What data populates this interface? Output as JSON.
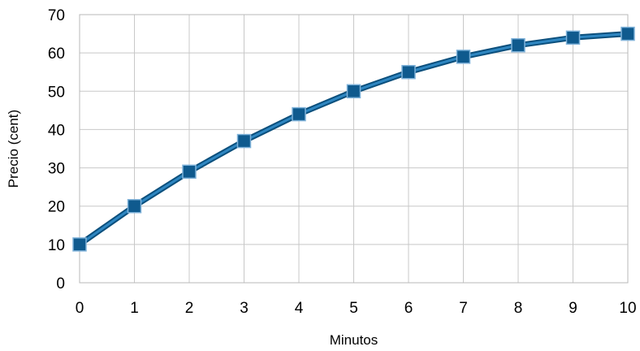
{
  "chart_data": {
    "type": "line",
    "title": "",
    "xlabel": "Minutos",
    "ylabel": "Precio (cent)",
    "x": [
      0,
      1,
      2,
      3,
      4,
      5,
      6,
      7,
      8,
      9,
      10
    ],
    "series": [
      {
        "values": [
          10,
          20,
          29,
          37,
          44,
          50,
          55,
          59,
          62,
          64,
          65
        ]
      }
    ],
    "xlim": [
      0,
      10
    ],
    "ylim": [
      0,
      70
    ],
    "x_ticks": [
      0,
      1,
      2,
      3,
      4,
      5,
      6,
      7,
      8,
      9,
      10
    ],
    "y_ticks": [
      0,
      10,
      20,
      30,
      40,
      50,
      60,
      70
    ],
    "grid": true,
    "marker": "square",
    "colors": {
      "line_dark": "#0b4f7c",
      "line_light": "#2e86c1",
      "marker_fill": "#0f5a8e",
      "marker_stroke": "#7fb2d9"
    }
  }
}
